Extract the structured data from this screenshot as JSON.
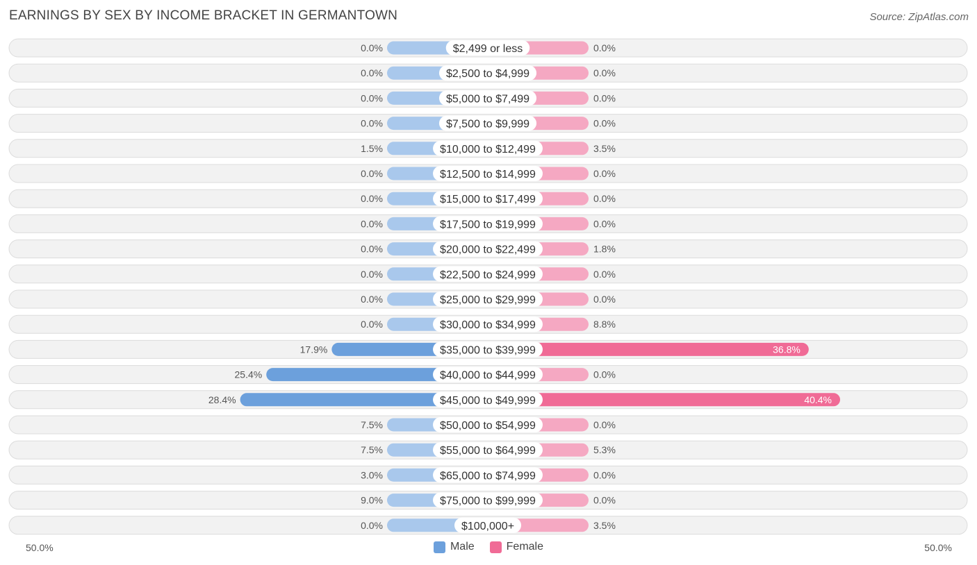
{
  "title": "EARNINGS BY SEX BY INCOME BRACKET IN GERMANTOWN",
  "source": "Source: ZipAtlas.com",
  "colors": {
    "male": "#6ca0dc",
    "male_light": "#a9c8ec",
    "female": "#f06b96",
    "female_light": "#f5a8c2"
  },
  "axis": {
    "left_label": "50.0%",
    "right_label": "50.0%"
  },
  "legend": {
    "male": "Male",
    "female": "Female"
  },
  "chart_data": {
    "type": "bar",
    "orientation": "horizontal-diverging",
    "xlim": [
      -50,
      50
    ],
    "legend_position": "bottom-center",
    "categories": [
      "$2,499 or less",
      "$2,500 to $4,999",
      "$5,000 to $7,499",
      "$7,500 to $9,999",
      "$10,000 to $12,499",
      "$12,500 to $14,999",
      "$15,000 to $17,499",
      "$17,500 to $19,999",
      "$20,000 to $22,499",
      "$22,500 to $24,999",
      "$25,000 to $29,999",
      "$30,000 to $34,999",
      "$35,000 to $39,999",
      "$40,000 to $44,999",
      "$45,000 to $49,999",
      "$50,000 to $54,999",
      "$55,000 to $64,999",
      "$65,000 to $74,999",
      "$75,000 to $99,999",
      "$100,000+"
    ],
    "series": [
      {
        "name": "Male",
        "values": [
          0.0,
          0.0,
          0.0,
          0.0,
          1.5,
          0.0,
          0.0,
          0.0,
          0.0,
          0.0,
          0.0,
          0.0,
          17.9,
          25.4,
          28.4,
          7.5,
          7.5,
          3.0,
          9.0,
          0.0
        ],
        "labels": [
          "0.0%",
          "0.0%",
          "0.0%",
          "0.0%",
          "1.5%",
          "0.0%",
          "0.0%",
          "0.0%",
          "0.0%",
          "0.0%",
          "0.0%",
          "0.0%",
          "17.9%",
          "25.4%",
          "28.4%",
          "7.5%",
          "7.5%",
          "3.0%",
          "9.0%",
          "0.0%"
        ]
      },
      {
        "name": "Female",
        "values": [
          0.0,
          0.0,
          0.0,
          0.0,
          3.5,
          0.0,
          0.0,
          0.0,
          1.8,
          0.0,
          0.0,
          8.8,
          36.8,
          0.0,
          40.4,
          0.0,
          5.3,
          0.0,
          0.0,
          3.5
        ],
        "labels": [
          "0.0%",
          "0.0%",
          "0.0%",
          "0.0%",
          "3.5%",
          "0.0%",
          "0.0%",
          "0.0%",
          "1.8%",
          "0.0%",
          "0.0%",
          "8.8%",
          "36.8%",
          "0.0%",
          "40.4%",
          "0.0%",
          "5.3%",
          "0.0%",
          "0.0%",
          "3.5%"
        ]
      }
    ]
  }
}
